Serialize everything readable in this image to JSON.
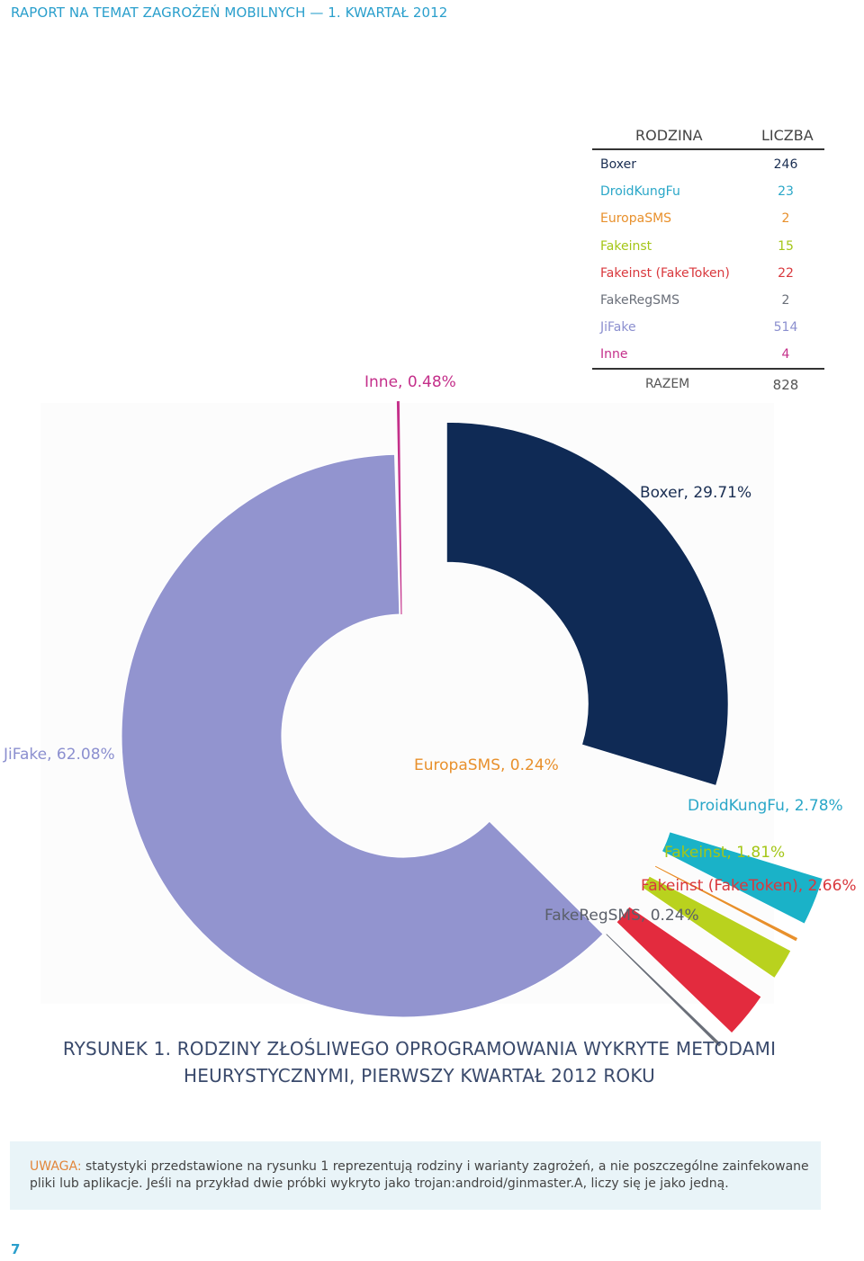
{
  "header": "RAPORT NA TEMAT ZAGROŻEŃ MOBILNYCH — 1. KWARTAŁ 2012",
  "table": {
    "col_family": "RODZINA",
    "col_count": "LICZBA",
    "rows": [
      {
        "name": "Boxer",
        "count": "246",
        "color": "#1a2e52"
      },
      {
        "name": "DroidKungFu",
        "count": "23",
        "color": "#2aa7c8"
      },
      {
        "name": "EuropaSMS",
        "count": "2",
        "color": "#e8902c"
      },
      {
        "name": "Fakeinst",
        "count": "15",
        "color": "#a4c617"
      },
      {
        "name": "Fakeinst (FakeToken)",
        "count": "22",
        "color": "#d9383d"
      },
      {
        "name": "FakeRegSMS",
        "count": "2",
        "color": "#6a6f79"
      },
      {
        "name": "JiFake",
        "count": "514",
        "color": "#8b8fcf"
      },
      {
        "name": "Inne",
        "count": "4",
        "color": "#c42f8a"
      }
    ],
    "total_label": "RAZEM",
    "total_count": "828"
  },
  "chart_data": {
    "type": "pie",
    "title": "RYSUNEK 1. RODZINY ZŁOŚLIWEGO OPROGRAMOWANIA WYKRYTE METODAMI HEURYSTYCZNYMI, PIERWSZY KWARTAŁ 2012 ROKU",
    "categories": [
      "Boxer",
      "DroidKungFu",
      "EuropaSMS",
      "Fakeinst",
      "Fakeinst (FakeToken)",
      "FakeRegSMS",
      "JiFake",
      "Inne"
    ],
    "values": [
      29.71,
      2.78,
      0.24,
      1.81,
      2.66,
      0.24,
      62.08,
      0.48
    ],
    "labels": [
      "Boxer, 29.71%",
      "DroidKungFu, 2.78%",
      "EuropaSMS, 0.24%",
      "Fakeinst, 1.81%",
      "Fakeinst (FakeToken), 2.66%",
      "FakeRegSMS, 0.24%",
      "JiFake, 62.08%",
      "Inne, 0.48%"
    ],
    "colors": [
      "#0f2a55",
      "#1ab2c8",
      "#e8902c",
      "#b9d21e",
      "#e32b3e",
      "#6a6f79",
      "#9294cf",
      "#c42f8a"
    ],
    "label_colors": [
      "#1a2e52",
      "#2aa7c8",
      "#e8902c",
      "#a4c617",
      "#d9383d",
      "#5a5f69",
      "#8b8fcf",
      "#c42f8a"
    ]
  },
  "caption": {
    "line1": "RYSUNEK 1. RODZINY ZŁOŚLIWEGO OPROGRAMOWANIA WYKRYTE METODAMI",
    "line2": "HEURYSTYCZNYMI, PIERWSZY KWARTAŁ 2012 ROKU"
  },
  "note": {
    "label": "UWAGA:",
    "text": " statystyki przedstawione na rysunku 1 reprezentują rodziny i warianty zagrożeń, a nie poszczególne zainfekowane pliki lub aplikacje. Jeśli na przykład dwie próbki wykryto jako trojan:android/ginmaster.A, liczy się je jako jedną."
  },
  "page_number": "7"
}
